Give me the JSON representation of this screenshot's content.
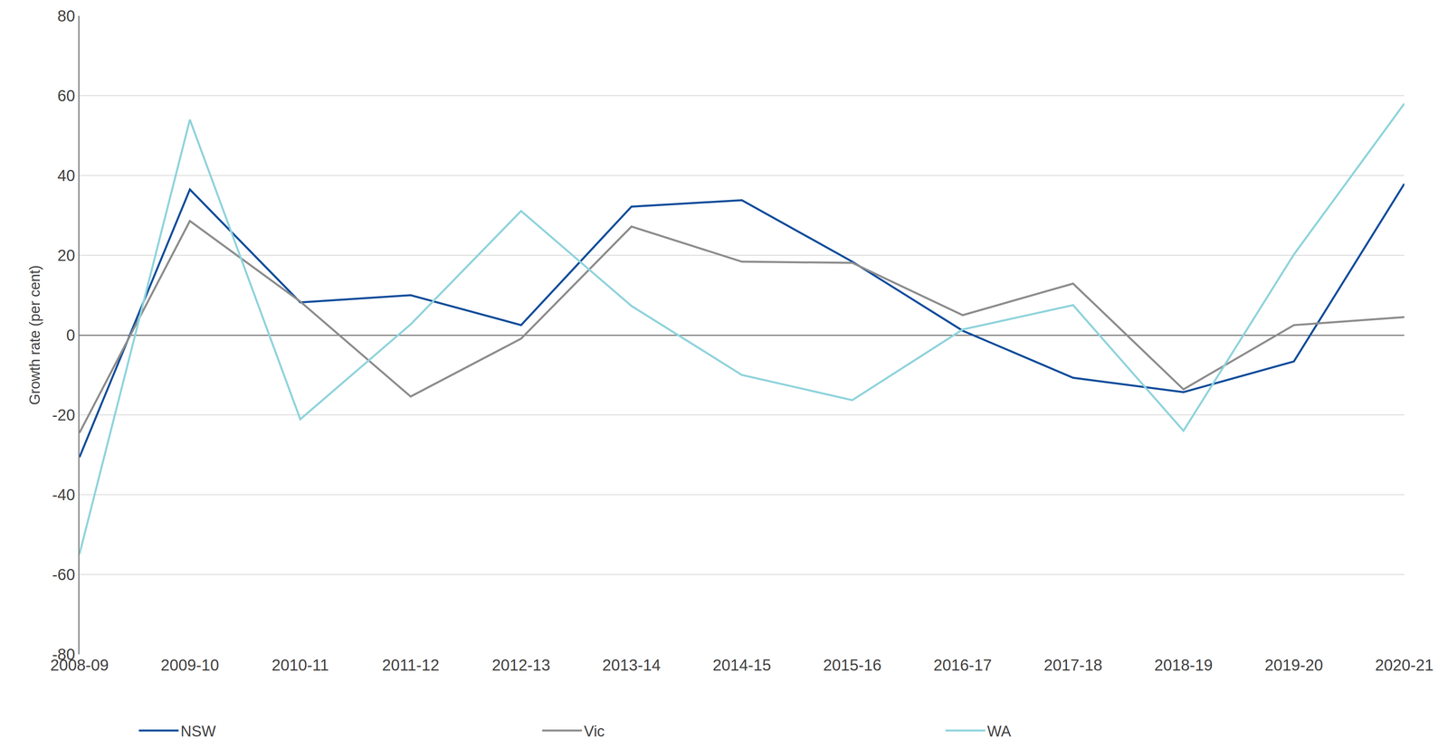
{
  "chart_data": {
    "type": "line",
    "y_label": "Growth rate (per cent)",
    "categories": [
      "2008-09",
      "2009-10",
      "2010-11",
      "2011-12",
      "2012-13",
      "2013-14",
      "2014-15",
      "2015-16",
      "2016-17",
      "2017-18",
      "2018-19",
      "2019-20",
      "2020-21"
    ],
    "series": [
      {
        "name": "NSW",
        "color": "#0d4c9a",
        "values": [
          -30.6,
          36.5,
          8.2,
          10.0,
          2.5,
          32.2,
          33.8,
          18.4,
          1.1,
          -10.7,
          -14.3,
          -6.6,
          37.9
        ]
      },
      {
        "name": "Vic",
        "color": "#8c8c8c",
        "values": [
          -24.5,
          28.6,
          8.4,
          -15.4,
          -0.9,
          27.2,
          18.4,
          18.1,
          5.0,
          12.9,
          -13.6,
          2.5,
          4.5
        ]
      },
      {
        "name": "WA",
        "color": "#8fd3dc",
        "values": [
          -54.9,
          54.0,
          -21.1,
          2.7,
          31.1,
          7.3,
          -10.0,
          -16.3,
          1.4,
          7.5,
          -24.0,
          20.2,
          58.0
        ]
      }
    ],
    "ylim": [
      -80,
      80
    ],
    "yticks": [
      -80,
      -60,
      -40,
      -20,
      0,
      20,
      40,
      60,
      80
    ],
    "grid": true,
    "legend": "bottom"
  }
}
